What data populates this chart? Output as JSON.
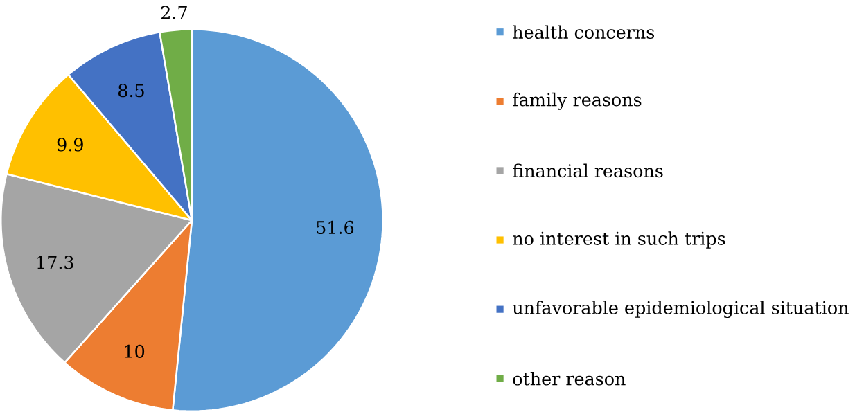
{
  "chart_data": {
    "type": "pie",
    "categories": [
      "health concerns",
      "family reasons",
      "financial reasons",
      "no interest in such trips",
      "unfavorable epidemiological situation",
      "other reason"
    ],
    "values": [
      51.6,
      10,
      17.3,
      9.9,
      8.5,
      2.7
    ],
    "colors": [
      "#5b9bd5",
      "#ed7d31",
      "#a5a5a5",
      "#ffc000",
      "#4472c4",
      "#70ad47"
    ],
    "data_labels": true,
    "legend": "right"
  }
}
